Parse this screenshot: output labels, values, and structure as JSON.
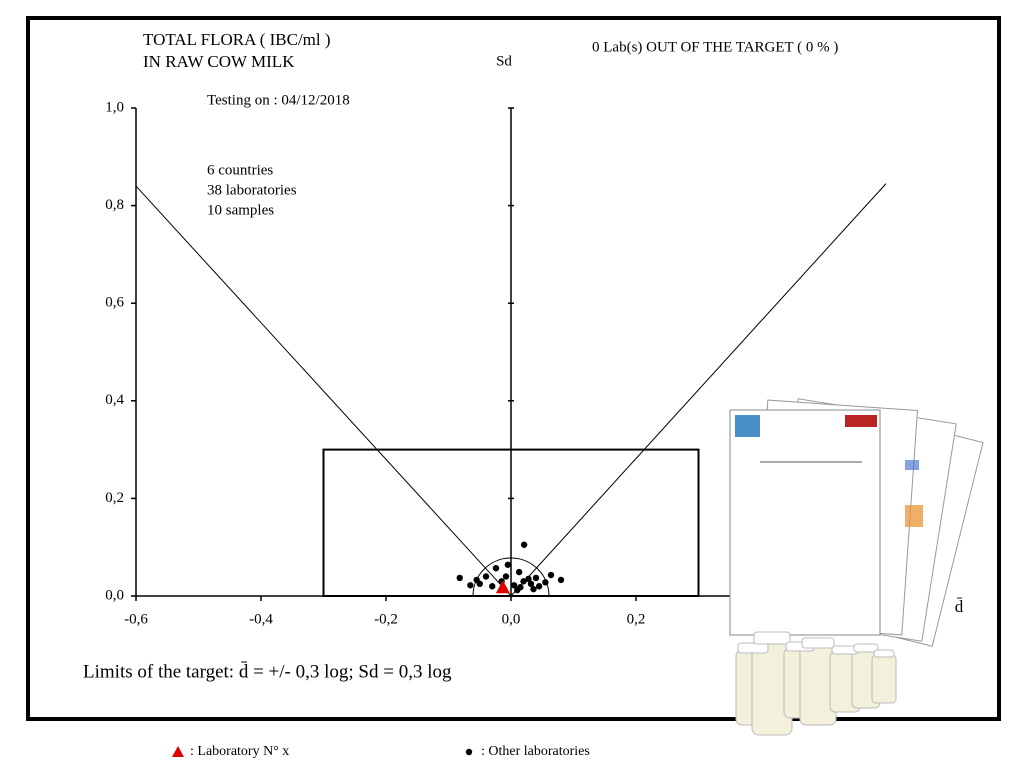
{
  "chart_data": {
    "type": "scatter",
    "title": [
      "TOTAL FLORA ( IBC/ml )",
      "IN RAW COW MILK"
    ],
    "status": "0 Lab(s) OUT OF THE TARGET ( 0 % )",
    "testing_date": "Testing on : 04/12/2018",
    "info": [
      "6 countries",
      "38 laboratories",
      "10 samples"
    ],
    "x_label": "d̄",
    "y_label": "Sd",
    "footer": "Limits of the target: d̄ = +/-  0,3 log; Sd = 0,3 log",
    "xlim": [
      -0.6,
      0.6
    ],
    "ylim": [
      0,
      1
    ],
    "xticks": [
      {
        "value": -0.6,
        "label": "-0,6"
      },
      {
        "value": -0.4,
        "label": "-0,4"
      },
      {
        "value": -0.2,
        "label": "-0,2"
      },
      {
        "value": 0,
        "label": "0,0"
      },
      {
        "value": 0.2,
        "label": "0,2"
      }
    ],
    "yticks": [
      {
        "value": 0,
        "label": "0,0"
      },
      {
        "value": 0.2,
        "label": "0,2"
      },
      {
        "value": 0.4,
        "label": "0,4"
      },
      {
        "value": 0.6,
        "label": "0,6"
      },
      {
        "value": 0.8,
        "label": "0,8"
      },
      {
        "value": 1,
        "label": "1,0"
      }
    ],
    "target": {
      "x": [
        -0.3,
        0.3
      ],
      "y": [
        0,
        0.3
      ]
    },
    "cone_lines": [
      {
        "x": [
          -0.6,
          0
        ],
        "y": [
          0.84,
          0
        ]
      },
      {
        "x": [
          0,
          0.6
        ],
        "y": [
          0,
          0.845
        ]
      }
    ],
    "series": [
      {
        "name": ": Laboratory N° x",
        "color": "#e00000",
        "marker": "triangle",
        "x": [
          -0.013
        ],
        "values": [
          0.016
        ]
      },
      {
        "name": ": Other laboratories",
        "color": "#000000",
        "marker": "circle",
        "x": [
          0.021,
          -0.005,
          -0.024,
          0.064,
          -0.082,
          -0.055,
          0.08,
          0.013,
          -0.04,
          0.04,
          0.02,
          0.032,
          -0.015,
          0.005,
          0.028,
          -0.03,
          0.045,
          0.01,
          -0.05,
          0.036,
          -0.008,
          0.055,
          -0.065,
          0.015
        ],
        "values": [
          0.105,
          0.064,
          0.057,
          0.043,
          0.037,
          0.033,
          0.033,
          0.049,
          0.04,
          0.037,
          0.03,
          0.025,
          0.03,
          0.022,
          0.035,
          0.02,
          0.02,
          0.012,
          0.025,
          0.014,
          0.04,
          0.028,
          0.022,
          0.018
        ]
      }
    ]
  }
}
